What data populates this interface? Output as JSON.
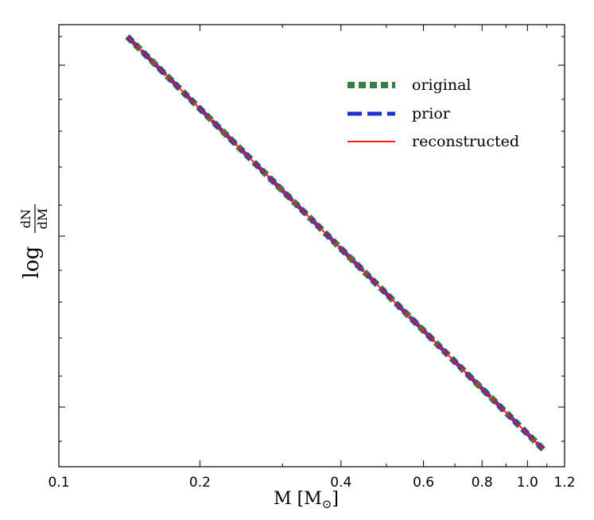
{
  "chart_data": {
    "type": "line",
    "xlabel": "M [M",
    "xlabel_sub": "⊙",
    "xlabel_close": "]",
    "ylabel_prefix": "log",
    "ylabel_num": "dN",
    "ylabel_den": "dM",
    "x_scale": "log",
    "xlim": [
      0.1,
      1.2
    ],
    "x_ticks": [
      0.1,
      0.2,
      0.4,
      0.6,
      0.8,
      1.0,
      1.2
    ],
    "x_tick_labels": [
      "0.1",
      "0.2",
      "0.4",
      "0.6",
      "0.8",
      "1.0",
      "1.2"
    ],
    "y_tick_labels_shown": false,
    "grid": false,
    "legend_position": "top-right",
    "series": [
      {
        "name": "original",
        "color": "#3a7d44",
        "style": "dotted-thick",
        "x": [
          0.14,
          1.08
        ],
        "y": [
          1.0,
          0.0
        ]
      },
      {
        "name": "prior",
        "color": "#1f2fd1",
        "style": "dashed",
        "x": [
          0.14,
          1.08
        ],
        "y": [
          1.0,
          0.0
        ]
      },
      {
        "name": "reconstructed",
        "color": "#ff1a1a",
        "style": "solid",
        "x": [
          0.14,
          1.08
        ],
        "y": [
          1.0,
          0.0
        ]
      }
    ]
  }
}
